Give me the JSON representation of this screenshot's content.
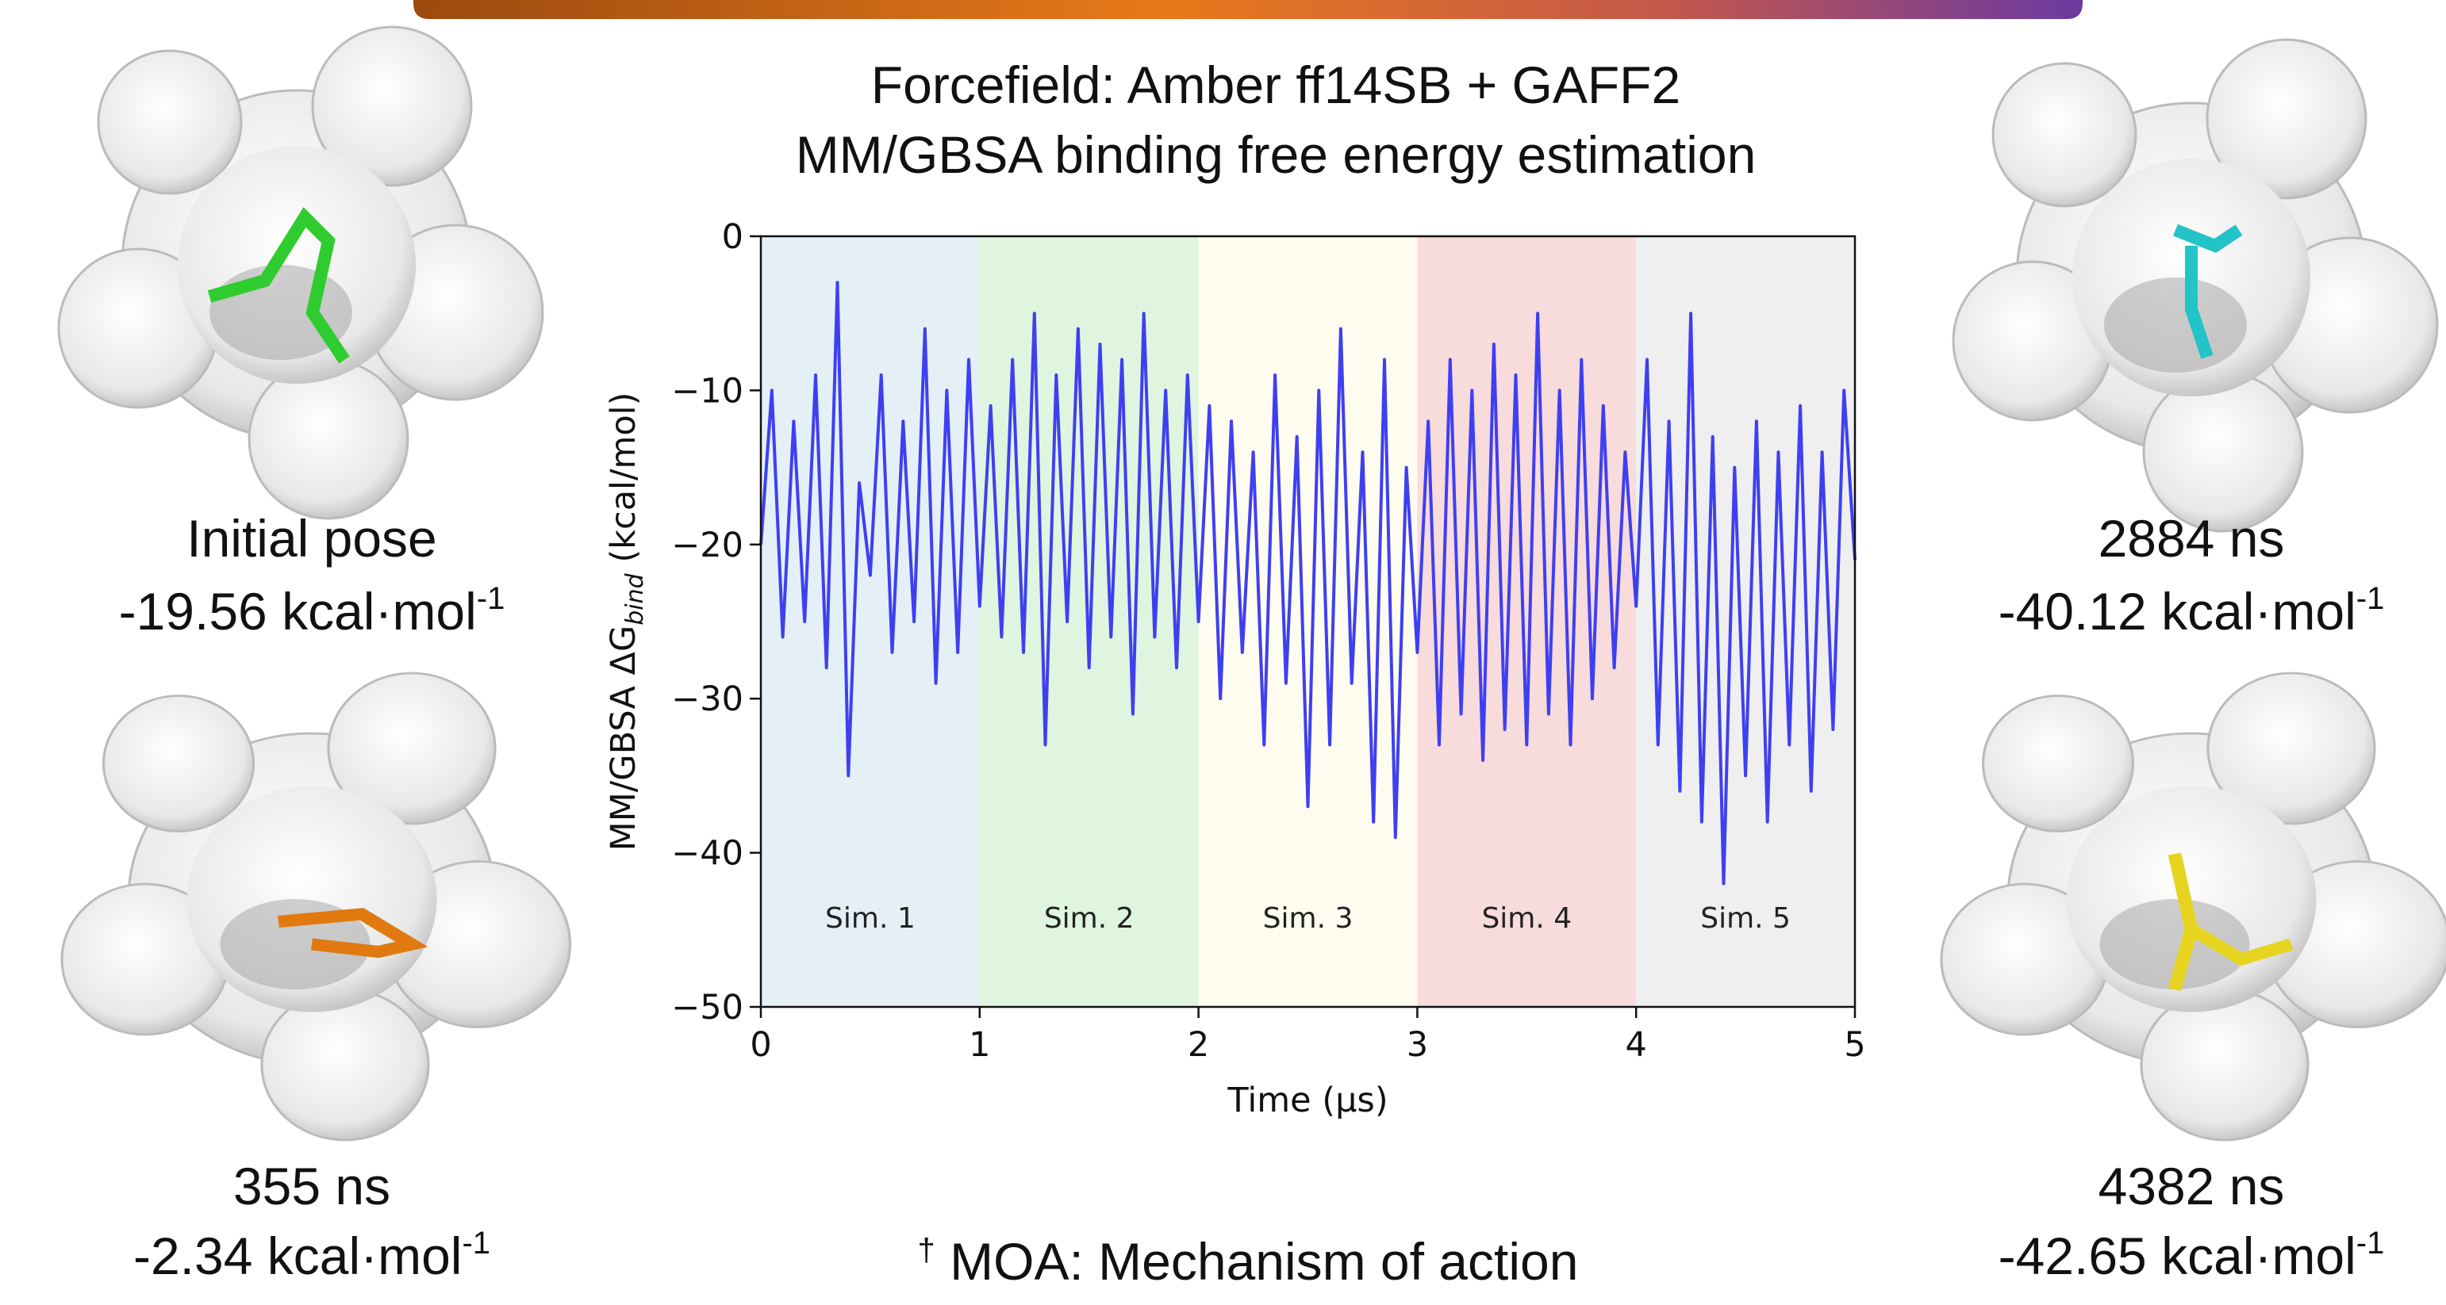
{
  "chart_data": {
    "type": "line",
    "title": [
      "Forcefield: Amber ff14SB + GAFF2",
      "MM/GBSA binding free energy estimation"
    ],
    "xlabel": "Time (μs)",
    "ylabel": [
      "MM/GBSA ΔG",
      "bind",
      " (kcal/mol)"
    ],
    "x": [
      0,
      0.05,
      0.1,
      0.15,
      0.2,
      0.25,
      0.3,
      0.35,
      0.4,
      0.45,
      0.5,
      0.55,
      0.6,
      0.65,
      0.7,
      0.75,
      0.8,
      0.85,
      0.9,
      0.95,
      1,
      1.05,
      1.1,
      1.15,
      1.2,
      1.25,
      1.3,
      1.35,
      1.4,
      1.45,
      1.5,
      1.55,
      1.6,
      1.65,
      1.7,
      1.75,
      1.8,
      1.85,
      1.9,
      1.95,
      2,
      2.05,
      2.1,
      2.15,
      2.2,
      2.25,
      2.3,
      2.35,
      2.4,
      2.45,
      2.5,
      2.55,
      2.6,
      2.65,
      2.7,
      2.75,
      2.8,
      2.85,
      2.9,
      2.95,
      3,
      3.05,
      3.1,
      3.15,
      3.2,
      3.25,
      3.3,
      3.35,
      3.4,
      3.45,
      3.5,
      3.55,
      3.6,
      3.65,
      3.7,
      3.75,
      3.8,
      3.85,
      3.9,
      3.95,
      4,
      4.05,
      4.1,
      4.15,
      4.2,
      4.25,
      4.3,
      4.35,
      4.4,
      4.45,
      4.5,
      4.55,
      4.6,
      4.65,
      4.7,
      4.75,
      4.8,
      4.85,
      4.9,
      4.95,
      5
    ],
    "series": [
      {
        "color": "#3f3ff2",
        "values": [
          -20,
          -10,
          -26,
          -12,
          -25,
          -9,
          -28,
          -3,
          -35,
          -16,
          -22,
          -9,
          -27,
          -12,
          -25,
          -6,
          -29,
          -10,
          -27,
          -8,
          -24,
          -11,
          -26,
          -8,
          -27,
          -5,
          -33,
          -9,
          -25,
          -6,
          -28,
          -7,
          -26,
          -8,
          -31,
          -5,
          -26,
          -10,
          -28,
          -9,
          -25,
          -11,
          -30,
          -12,
          -27,
          -14,
          -33,
          -9,
          -29,
          -13,
          -37,
          -10,
          -33,
          -6,
          -29,
          -14,
          -38,
          -8,
          -39,
          -15,
          -27,
          -12,
          -33,
          -8,
          -31,
          -10,
          -34,
          -7,
          -32,
          -9,
          -33,
          -5,
          -31,
          -10,
          -33,
          -8,
          -30,
          -11,
          -28,
          -14,
          -24,
          -8,
          -33,
          -12,
          -36,
          -5,
          -38,
          -13,
          -42,
          -15,
          -35,
          -12,
          -38,
          -14,
          -33,
          -11,
          -36,
          -14,
          -32,
          -10,
          -21
        ]
      }
    ],
    "regions": [
      {
        "label": "Sim. 1",
        "start": 0,
        "end": 1,
        "color": "#e4f0f6"
      },
      {
        "label": "Sim. 2",
        "start": 1,
        "end": 2,
        "color": "#dff5df"
      },
      {
        "label": "Sim. 3",
        "start": 2,
        "end": 3,
        "color": "#fefcef"
      },
      {
        "label": "Sim. 4",
        "start": 3,
        "end": 4,
        "color": "#f8dbdb"
      },
      {
        "label": "Sim. 5",
        "start": 4,
        "end": 5,
        "color": "#efefef"
      }
    ],
    "xlim": [
      0,
      5
    ],
    "xticks": [
      0,
      1,
      2,
      3,
      4,
      5
    ],
    "ylim": [
      -50,
      0
    ],
    "yticks": [
      {
        "value": -50,
        "label": "−50"
      },
      {
        "value": -40,
        "label": "−40"
      },
      {
        "value": -30,
        "label": "−30"
      },
      {
        "value": -20,
        "label": "−20"
      },
      {
        "value": -10,
        "label": "−10"
      },
      0
    ]
  },
  "captions": [
    {
      "label": "Initial pose",
      "energy": "-19.56 kcal·mol",
      "sup": "-1"
    },
    {
      "label": "355 ns",
      "energy": "-2.34 kcal·mol",
      "sup": "-1"
    },
    {
      "label": "2884 ns",
      "energy": "-40.12 kcal·mol",
      "sup": "-1"
    },
    {
      "label": "4382 ns",
      "energy": "-42.65 kcal·mol",
      "sup": "-1"
    }
  ],
  "footnote": {
    "mark": "†",
    "text": " MOA: Mechanism of action"
  }
}
